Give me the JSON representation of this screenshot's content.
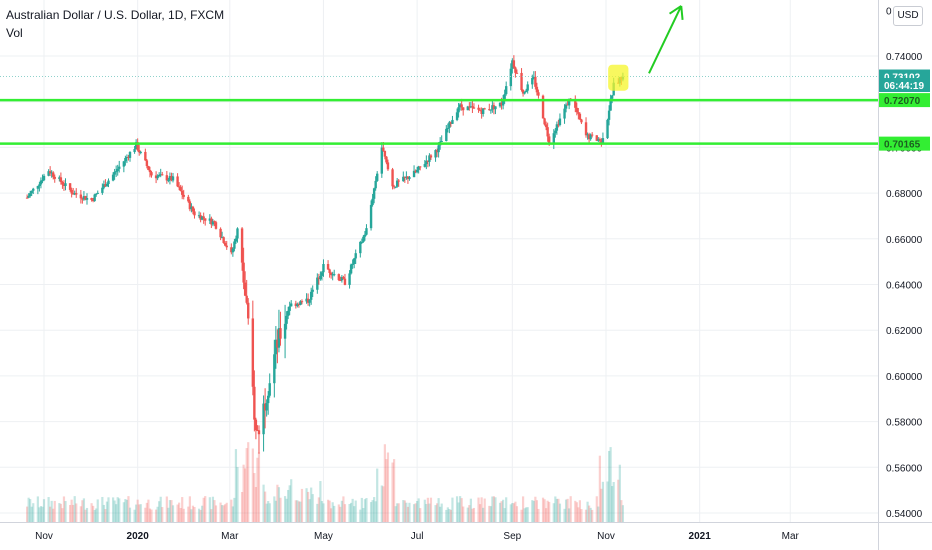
{
  "header": {
    "symbol_title": "Australian Dollar / U.S. Dollar, 1D, FXCM",
    "volume_label": "Vol",
    "currency_button": "USD"
  },
  "colors": {
    "up": "#26a69a",
    "down": "#ef5350",
    "support_line": "#33ee33",
    "arrow": "#22cc22",
    "highlight": "#f5f52a",
    "price_label_bg": "#26a69a",
    "grid": "#eef0f3"
  },
  "chart_data": {
    "type": "candlestick",
    "instrument": "AUDUSD",
    "timeframe": "1D",
    "source": "FXCM",
    "x_tick_labels": [
      "Nov",
      "2020",
      "Mar",
      "May",
      "Jul",
      "Sep",
      "Nov",
      "2021",
      "Mar"
    ],
    "y_tick_labels": [
      "0.74000",
      "0.72000",
      "0.70000",
      "0.68000",
      "0.66000",
      "0.64000",
      "0.62000",
      "0.60000",
      "0.58000",
      "0.56000",
      "0.54000"
    ],
    "ylim": [
      0.536,
      0.762
    ],
    "price_labels": [
      {
        "name": "last_price",
        "text": "0.73102",
        "value": 0.73102
      },
      {
        "name": "countdown",
        "text": "06:44:19",
        "value": 0.7273
      },
      {
        "name": "resistance",
        "text": "0.72070",
        "value": 0.7207
      },
      {
        "name": "support",
        "text": "0.70165",
        "value": 0.70165
      }
    ],
    "horizontal_lines": [
      0.7207,
      0.70165
    ],
    "series": [
      {
        "name": "AUDUSD",
        "path": [
          [
            "2019-10-21",
            0.678
          ],
          [
            "2019-11-04",
            0.69
          ],
          [
            "2019-11-20",
            0.68
          ],
          [
            "2019-12-02",
            0.677
          ],
          [
            "2019-12-16",
            0.688
          ],
          [
            "2019-12-31",
            0.701
          ],
          [
            "2020-01-10",
            0.688
          ],
          [
            "2020-01-24",
            0.686
          ],
          [
            "2020-02-07",
            0.671
          ],
          [
            "2020-02-20",
            0.667
          ],
          [
            "2020-03-02",
            0.653
          ],
          [
            "2020-03-06",
            0.664
          ],
          [
            "2020-03-12",
            0.63
          ],
          [
            "2020-03-18",
            0.575
          ],
          [
            "2020-03-20",
            0.577
          ],
          [
            "2020-03-31",
            0.612
          ],
          [
            "2020-04-09",
            0.631
          ],
          [
            "2020-04-21",
            0.633
          ],
          [
            "2020-05-01",
            0.648
          ],
          [
            "2020-05-15",
            0.641
          ],
          [
            "2020-05-29",
            0.664
          ],
          [
            "2020-06-08",
            0.7
          ],
          [
            "2020-06-15",
            0.683
          ],
          [
            "2020-06-30",
            0.689
          ],
          [
            "2020-07-15",
            0.7
          ],
          [
            "2020-07-28",
            0.718
          ],
          [
            "2020-08-12",
            0.716
          ],
          [
            "2020-08-25",
            0.719
          ],
          [
            "2020-09-01",
            0.738
          ],
          [
            "2020-09-08",
            0.724
          ],
          [
            "2020-09-15",
            0.73
          ],
          [
            "2020-09-25",
            0.703
          ],
          [
            "2020-10-09",
            0.722
          ],
          [
            "2020-10-19",
            0.705
          ],
          [
            "2020-10-30",
            0.703
          ],
          [
            "2020-11-06",
            0.727
          ],
          [
            "2020-11-12",
            0.731
          ]
        ]
      }
    ],
    "volume": {
      "label": "Vol",
      "peak_dates": [
        "2020-03-16",
        "2020-06-10",
        "2020-11-04"
      ]
    },
    "annotations": [
      {
        "type": "highlight",
        "from": "2020-11-05",
        "to": "2020-11-13",
        "low": 0.727,
        "high": 0.734
      },
      {
        "type": "arrow",
        "direction": "up",
        "from": [
          "2020-11-29",
          0.7324
        ],
        "to": [
          "2020-12-20",
          0.7619
        ]
      }
    ],
    "grid": true,
    "legend": "top-left"
  }
}
